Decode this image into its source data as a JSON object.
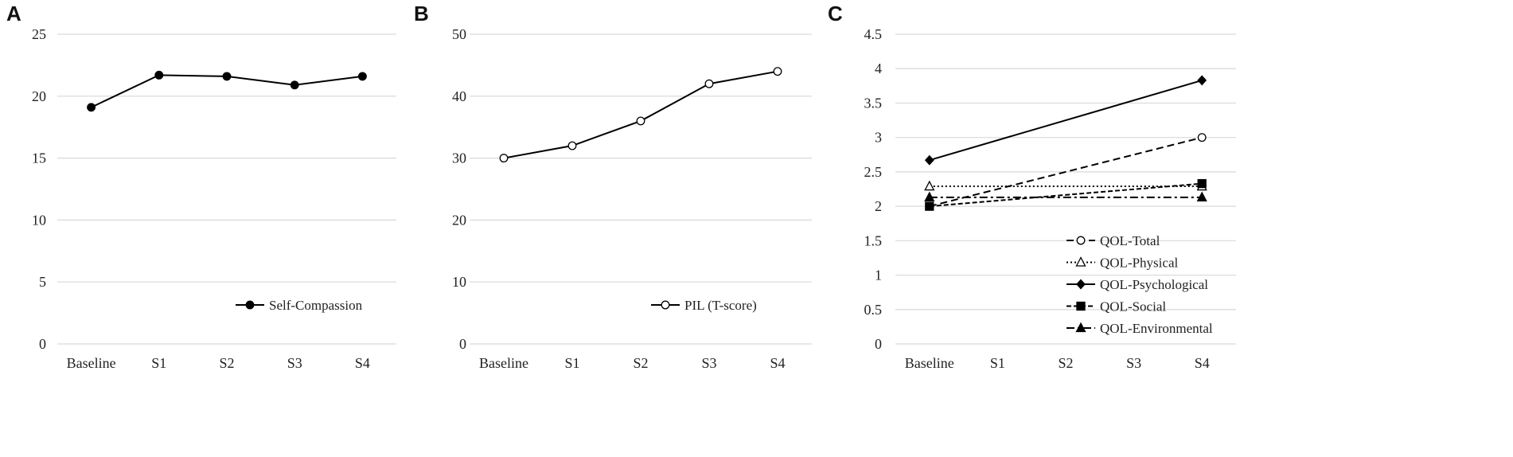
{
  "chart_data": [
    {
      "panel": "A",
      "type": "line",
      "categories": [
        "Baseline",
        "S1",
        "S2",
        "S3",
        "S4"
      ],
      "yticks": [
        0,
        5,
        10,
        15,
        20,
        25
      ],
      "ylim": [
        0,
        25
      ],
      "grid": true,
      "legend_position": "bottom-right",
      "series": [
        {
          "name": "Self-Compassion",
          "values": [
            19.1,
            21.7,
            21.6,
            20.9,
            21.6
          ],
          "marker": "filled-circle",
          "dash": "solid",
          "color": "#000000"
        }
      ]
    },
    {
      "panel": "B",
      "type": "line",
      "categories": [
        "Baseline",
        "S1",
        "S2",
        "S3",
        "S4"
      ],
      "yticks": [
        0,
        10,
        20,
        30,
        40,
        50
      ],
      "ylim": [
        0,
        50
      ],
      "grid": true,
      "legend_position": "bottom-right",
      "series": [
        {
          "name": "PIL (T-score)",
          "values": [
            30,
            32,
            36,
            42,
            44
          ],
          "marker": "open-circle",
          "dash": "solid",
          "color": "#000000"
        }
      ]
    },
    {
      "panel": "C",
      "type": "line",
      "categories": [
        "Baseline",
        "S1",
        "S2",
        "S3",
        "S4"
      ],
      "yticks": [
        "0",
        "0.5",
        "1",
        "1.5",
        "2",
        "2.5",
        "3",
        "3.5",
        "4",
        "4.5"
      ],
      "ylim": [
        0,
        4.5
      ],
      "grid": true,
      "legend_position": "bottom-right",
      "series": [
        {
          "name": "QOL-Total",
          "points": [
            [
              "Baseline",
              2.0
            ],
            [
              "S4",
              3.0
            ]
          ],
          "marker": "open-circle",
          "dash": "dashed",
          "color": "#000000"
        },
        {
          "name": "QOL-Physical",
          "points": [
            [
              "Baseline",
              2.29
            ],
            [
              "S4",
              2.29
            ]
          ],
          "marker": "open-triangle",
          "dash": "dotted",
          "color": "#000000"
        },
        {
          "name": "QOL-Psychological",
          "points": [
            [
              "Baseline",
              2.67
            ],
            [
              "S4",
              3.83
            ]
          ],
          "marker": "filled-diamond",
          "dash": "solid",
          "color": "#000000"
        },
        {
          "name": "QOL-Social",
          "points": [
            [
              "Baseline",
              2.0
            ],
            [
              "S4",
              2.33
            ]
          ],
          "marker": "filled-square",
          "dash": "short-dash",
          "color": "#000000"
        },
        {
          "name": "QOL-Environmental",
          "points": [
            [
              "Baseline",
              2.13
            ],
            [
              "S4",
              2.13
            ]
          ],
          "marker": "filled-triangle",
          "dash": "dash-dot",
          "color": "#000000"
        }
      ]
    }
  ]
}
